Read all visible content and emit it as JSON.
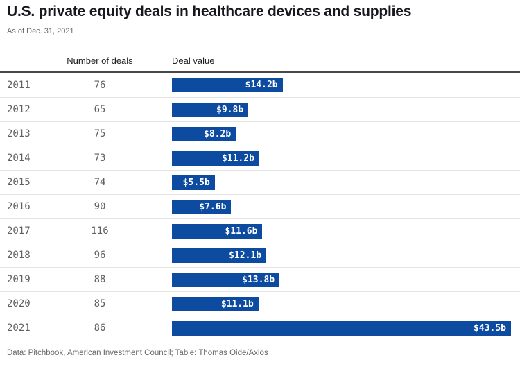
{
  "title": "U.S. private equity deals in healthcare devices and supplies",
  "subtitle": "As of Dec. 31, 2021",
  "columns": {
    "deals": "Number of deals",
    "value": "Deal value"
  },
  "footer": "Data: Pitchbook, American Investment Council; Table: Thomas Oide/Axios",
  "colors": {
    "bar": "#0d4ba1",
    "bar_label": "#ffffff",
    "title_text": "#17171d",
    "muted_text": "#67676d",
    "row_separator": "#e3e3e6",
    "table_top_border": "#47474c"
  },
  "chart_data": {
    "type": "bar",
    "orientation": "horizontal",
    "title": "U.S. private equity deals in healthcare devices and supplies",
    "subtitle": "As of Dec. 31, 2021",
    "categories": [
      "2011",
      "2012",
      "2013",
      "2014",
      "2015",
      "2016",
      "2017",
      "2018",
      "2019",
      "2020",
      "2021"
    ],
    "series": [
      {
        "name": "Number of deals",
        "values": [
          76,
          65,
          75,
          73,
          74,
          90,
          116,
          96,
          88,
          85,
          86
        ]
      },
      {
        "name": "Deal value ($b)",
        "values": [
          14.2,
          9.8,
          8.2,
          11.2,
          5.5,
          7.6,
          11.6,
          12.1,
          13.8,
          11.1,
          43.5
        ]
      }
    ],
    "bar_labels": [
      "$14.2b",
      "$9.8b",
      "$8.2b",
      "$11.2b",
      "$5.5b",
      "$7.6b",
      "$11.6b",
      "$12.1b",
      "$13.8b",
      "$11.1b",
      "$43.5b"
    ],
    "xlim": [
      0,
      43.5
    ],
    "grid": false,
    "legend": "none",
    "source": "Data: Pitchbook, American Investment Council; Table: Thomas Oide/Axios"
  }
}
